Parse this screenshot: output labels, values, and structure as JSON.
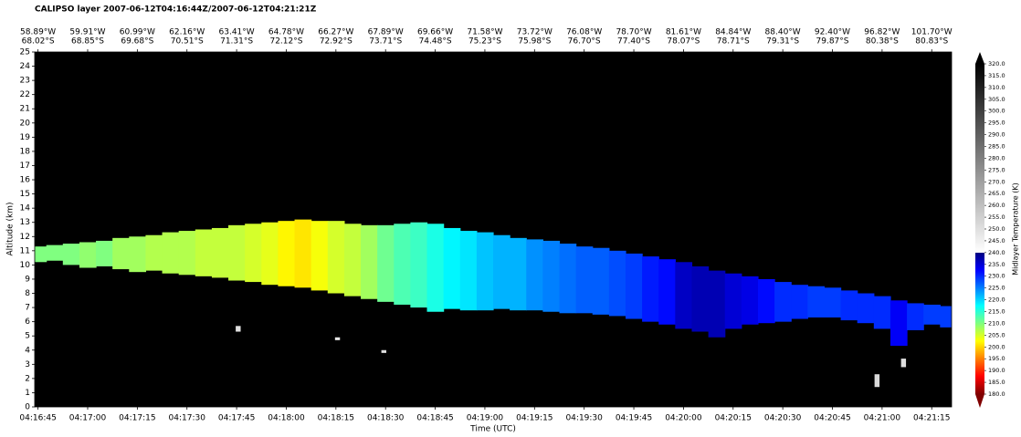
{
  "chart_data": {
    "type": "curtain",
    "title": "CALIPSO layer 2007-06-12T04:16:44Z/2007-06-12T04:21:21Z",
    "x_label": "Time (UTC)",
    "y_label": "Altitude (km)",
    "colorbar_label": "Midlayer Temperature (K)",
    "xlim": [
      "04:16:44",
      "04:21:21"
    ],
    "xticks": [
      "04:16:45",
      "04:17:00",
      "04:17:15",
      "04:17:30",
      "04:17:45",
      "04:18:00",
      "04:18:15",
      "04:18:30",
      "04:18:45",
      "04:19:00",
      "04:19:15",
      "04:19:30",
      "04:19:45",
      "04:20:00",
      "04:20:15",
      "04:20:30",
      "04:20:45",
      "04:21:00",
      "04:21:15"
    ],
    "top_lon": [
      "58.89°W",
      "59.91°W",
      "60.99°W",
      "62.16°W",
      "63.41°W",
      "64.78°W",
      "66.27°W",
      "67.89°W",
      "69.66°W",
      "71.58°W",
      "73.72°W",
      "76.08°W",
      "78.70°W",
      "81.61°W",
      "84.84°W",
      "88.40°W",
      "92.40°W",
      "96.82°W",
      "101.70°W"
    ],
    "top_lat": [
      "68.02°S",
      "68.85°S",
      "69.68°S",
      "70.51°S",
      "71.31°S",
      "72.12°S",
      "72.92°S",
      "73.71°S",
      "74.48°S",
      "75.23°S",
      "75.98°S",
      "76.70°S",
      "77.40°S",
      "78.07°S",
      "78.71°S",
      "79.31°S",
      "79.87°S",
      "80.38°S",
      "80.83°S"
    ],
    "ylim": [
      0,
      25
    ],
    "yticks": [
      0,
      1,
      2,
      3,
      4,
      5,
      6,
      7,
      8,
      9,
      10,
      11,
      12,
      13,
      14,
      15,
      16,
      17,
      18,
      19,
      20,
      21,
      22,
      23,
      24,
      25
    ],
    "x": [
      "04:16:45",
      "04:16:50",
      "04:16:55",
      "04:17:00",
      "04:17:05",
      "04:17:10",
      "04:17:15",
      "04:17:20",
      "04:17:25",
      "04:17:30",
      "04:17:35",
      "04:17:40",
      "04:17:45",
      "04:17:50",
      "04:17:55",
      "04:18:00",
      "04:18:05",
      "04:18:10",
      "04:18:15",
      "04:18:20",
      "04:18:25",
      "04:18:30",
      "04:18:35",
      "04:18:40",
      "04:18:45",
      "04:18:50",
      "04:18:55",
      "04:19:00",
      "04:19:05",
      "04:19:10",
      "04:19:15",
      "04:19:20",
      "04:19:25",
      "04:19:30",
      "04:19:35",
      "04:19:40",
      "04:19:45",
      "04:19:50",
      "04:19:55",
      "04:20:00",
      "04:20:05",
      "04:20:10",
      "04:20:15",
      "04:20:20",
      "04:20:25",
      "04:20:30",
      "04:20:35",
      "04:20:40",
      "04:20:45",
      "04:20:50",
      "04:20:55",
      "04:21:00",
      "04:21:05",
      "04:21:10",
      "04:21:15",
      "04:21:20"
    ],
    "top": [
      11.3,
      11.4,
      11.5,
      11.6,
      11.7,
      11.9,
      12.0,
      12.1,
      12.3,
      12.4,
      12.5,
      12.6,
      12.8,
      12.9,
      13.0,
      13.1,
      13.2,
      13.1,
      13.1,
      12.9,
      12.8,
      12.8,
      12.9,
      13.0,
      12.9,
      12.6,
      12.4,
      12.3,
      12.1,
      11.9,
      11.8,
      11.7,
      11.5,
      11.3,
      11.2,
      11.0,
      10.8,
      10.6,
      10.4,
      10.2,
      9.9,
      9.6,
      9.4,
      9.2,
      9.0,
      8.8,
      8.6,
      8.5,
      8.4,
      8.2,
      8.0,
      7.8,
      7.5,
      7.3,
      7.2,
      7.1
    ],
    "base": [
      10.2,
      10.3,
      10.0,
      9.8,
      9.9,
      9.7,
      9.5,
      9.6,
      9.4,
      9.3,
      9.2,
      9.1,
      8.9,
      8.8,
      8.6,
      8.5,
      8.4,
      8.2,
      8.0,
      7.8,
      7.6,
      7.4,
      7.2,
      7.0,
      6.7,
      6.9,
      6.8,
      6.8,
      6.9,
      6.8,
      6.8,
      6.7,
      6.6,
      6.6,
      6.5,
      6.4,
      6.2,
      6.0,
      5.8,
      5.5,
      5.3,
      4.9,
      5.5,
      5.8,
      5.9,
      6.0,
      6.2,
      6.3,
      6.3,
      6.1,
      5.9,
      5.5,
      4.3,
      5.4,
      5.8,
      5.6
    ],
    "values": [
      210,
      210,
      210,
      209,
      210,
      208,
      208,
      207,
      207,
      207,
      206,
      206,
      206,
      205,
      204,
      202,
      201,
      203,
      205,
      206,
      208,
      211,
      213,
      214,
      216,
      218,
      219,
      221,
      222,
      222,
      224,
      225,
      226,
      227,
      227,
      228,
      229,
      231,
      232,
      236,
      237,
      237,
      235,
      234,
      232,
      230,
      230,
      229,
      229,
      230,
      230,
      230,
      233,
      230,
      229,
      229
    ],
    "patches": [
      {
        "x": "04:17:45",
        "top": 5.7,
        "base": 5.3,
        "value": 250
      },
      {
        "x": "04:18:15",
        "top": 4.9,
        "base": 4.7,
        "value": 248
      },
      {
        "x": "04:18:29",
        "top": 4.0,
        "base": 3.8,
        "value": 250
      },
      {
        "x": "04:20:58",
        "top": 2.3,
        "base": 1.4,
        "value": 252
      },
      {
        "x": "04:21:06",
        "top": 3.4,
        "base": 2.8,
        "value": 250
      }
    ],
    "colormap": [
      {
        "value": 180,
        "color": "#800000"
      },
      {
        "value": 187.5,
        "color": "#ff0000"
      },
      {
        "value": 202.5,
        "color": "#ffff00"
      },
      {
        "value": 217.5,
        "color": "#00ffff"
      },
      {
        "value": 232.5,
        "color": "#0000ff"
      },
      {
        "value": 240,
        "color": "#000080"
      },
      {
        "value": 240,
        "color": "#ffffff"
      },
      {
        "value": 320,
        "color": "#000000"
      }
    ],
    "background": "#000000",
    "clim": [
      180,
      320
    ],
    "cticks": [
      {
        "value": 180,
        "label": "180.0"
      },
      {
        "value": 185,
        "label": "185.0"
      },
      {
        "value": 190,
        "label": "190.0"
      },
      {
        "value": 195,
        "label": "195.0"
      },
      {
        "value": 200,
        "label": "200.0"
      },
      {
        "value": 205,
        "label": "205.0"
      },
      {
        "value": 210,
        "label": "210.0"
      },
      {
        "value": 215,
        "label": "215.0"
      },
      {
        "value": 220,
        "label": "220.0"
      },
      {
        "value": 225,
        "label": "225.0"
      },
      {
        "value": 230,
        "label": "230.0"
      },
      {
        "value": 235,
        "label": "235.0"
      },
      {
        "value": 240,
        "label": "240.0"
      },
      {
        "value": 245,
        "label": "245.0"
      },
      {
        "value": 250,
        "label": "250.0"
      },
      {
        "value": 255,
        "label": "255.0"
      },
      {
        "value": 260,
        "label": "260.0"
      },
      {
        "value": 265,
        "label": "265.0"
      },
      {
        "value": 270,
        "label": "270.0"
      },
      {
        "value": 275,
        "label": "275.0"
      },
      {
        "value": 280,
        "label": "280.0"
      },
      {
        "value": 285,
        "label": "285.0"
      },
      {
        "value": 290,
        "label": "290.0"
      },
      {
        "value": 295,
        "label": "295.0"
      },
      {
        "value": 300,
        "label": "300.0"
      },
      {
        "value": 305,
        "label": "305.0"
      },
      {
        "value": 310,
        "label": "310.0"
      },
      {
        "value": 315,
        "label": "315.0"
      },
      {
        "value": 320,
        "label": "320.0"
      }
    ]
  }
}
